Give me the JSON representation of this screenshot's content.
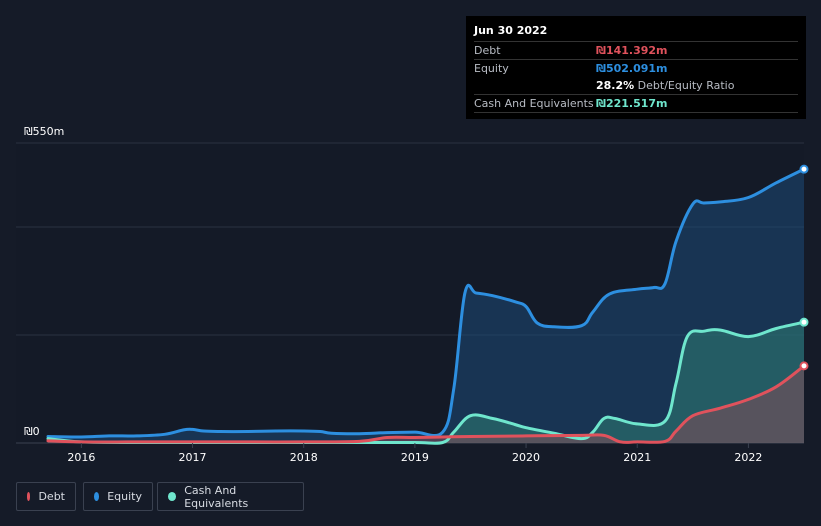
{
  "chart_data": {
    "type": "area",
    "title": "",
    "xlabel": "",
    "ylabel": "",
    "y_max_label": "₪550m",
    "y_min_label": "₪0",
    "ylim": [
      0,
      550
    ],
    "xlim": [
      2015.7,
      2022.5
    ],
    "x_ticks": [
      {
        "label": "2016",
        "value": 2016
      },
      {
        "label": "2017",
        "value": 2017
      },
      {
        "label": "2018",
        "value": 2018
      },
      {
        "label": "2019",
        "value": 2019
      },
      {
        "label": "2020",
        "value": 2020
      },
      {
        "label": "2021",
        "value": 2021
      },
      {
        "label": "2022",
        "value": 2022
      }
    ],
    "series": [
      {
        "name": "Equity",
        "key": "equity",
        "color": "#2d8fe0",
        "points": [
          [
            2015.7,
            12
          ],
          [
            2016.0,
            11
          ],
          [
            2016.25,
            13
          ],
          [
            2016.5,
            13
          ],
          [
            2016.75,
            16
          ],
          [
            2016.92,
            24
          ],
          [
            2017.0,
            25
          ],
          [
            2017.1,
            22
          ],
          [
            2017.25,
            21
          ],
          [
            2017.5,
            21
          ],
          [
            2017.75,
            22
          ],
          [
            2018.0,
            22
          ],
          [
            2018.15,
            21
          ],
          [
            2018.25,
            18
          ],
          [
            2018.5,
            17
          ],
          [
            2018.75,
            19
          ],
          [
            2019.0,
            20
          ],
          [
            2019.25,
            20
          ],
          [
            2019.35,
            100
          ],
          [
            2019.45,
            275
          ],
          [
            2019.55,
            275
          ],
          [
            2019.7,
            270
          ],
          [
            2019.9,
            259
          ],
          [
            2020.0,
            250
          ],
          [
            2020.1,
            220
          ],
          [
            2020.25,
            213
          ],
          [
            2020.5,
            215
          ],
          [
            2020.6,
            240
          ],
          [
            2020.75,
            273
          ],
          [
            2021.0,
            282
          ],
          [
            2021.15,
            285
          ],
          [
            2021.25,
            292
          ],
          [
            2021.35,
            370
          ],
          [
            2021.5,
            438
          ],
          [
            2021.6,
            440
          ],
          [
            2021.75,
            442
          ],
          [
            2022.0,
            450
          ],
          [
            2022.25,
            477
          ],
          [
            2022.5,
            502.091
          ]
        ]
      },
      {
        "name": "Cash And Equivalents",
        "key": "cash",
        "color": "#6fe6cd",
        "points": [
          [
            2015.7,
            8
          ],
          [
            2016.0,
            2
          ],
          [
            2016.5,
            1
          ],
          [
            2017.0,
            1
          ],
          [
            2017.5,
            1
          ],
          [
            2018.0,
            1
          ],
          [
            2018.5,
            1
          ],
          [
            2019.0,
            1
          ],
          [
            2019.25,
            1
          ],
          [
            2019.35,
            20
          ],
          [
            2019.5,
            50
          ],
          [
            2019.7,
            45
          ],
          [
            2019.9,
            34
          ],
          [
            2020.0,
            28
          ],
          [
            2020.25,
            18
          ],
          [
            2020.5,
            8
          ],
          [
            2020.6,
            20
          ],
          [
            2020.7,
            45
          ],
          [
            2020.8,
            45
          ],
          [
            2021.0,
            35
          ],
          [
            2021.25,
            40
          ],
          [
            2021.35,
            110
          ],
          [
            2021.45,
            195
          ],
          [
            2021.6,
            205
          ],
          [
            2021.75,
            207
          ],
          [
            2022.0,
            195
          ],
          [
            2022.25,
            210
          ],
          [
            2022.5,
            221.517
          ]
        ]
      },
      {
        "name": "Debt",
        "key": "debt",
        "color": "#e0525c",
        "points": [
          [
            2015.7,
            4
          ],
          [
            2016.0,
            2
          ],
          [
            2016.5,
            2
          ],
          [
            2017.0,
            2
          ],
          [
            2017.5,
            2
          ],
          [
            2018.0,
            2
          ],
          [
            2018.5,
            3
          ],
          [
            2018.75,
            10
          ],
          [
            2019.0,
            10
          ],
          [
            2019.25,
            11
          ],
          [
            2019.5,
            12
          ],
          [
            2020.0,
            13
          ],
          [
            2020.5,
            14
          ],
          [
            2020.7,
            14
          ],
          [
            2020.85,
            2
          ],
          [
            2021.0,
            2
          ],
          [
            2021.25,
            3
          ],
          [
            2021.35,
            22
          ],
          [
            2021.5,
            50
          ],
          [
            2021.75,
            64
          ],
          [
            2022.0,
            80
          ],
          [
            2022.25,
            103
          ],
          [
            2022.5,
            141.392
          ]
        ]
      }
    ]
  },
  "tooltip": {
    "date": "Jun 30 2022",
    "debt_label": "Debt",
    "debt_value": "₪141.392m",
    "equity_label": "Equity",
    "equity_value": "₪502.091m",
    "ratio_value": "28.2%",
    "ratio_label": "Debt/Equity Ratio",
    "cash_label": "Cash And Equivalents",
    "cash_value": "₪221.517m"
  },
  "legend": [
    {
      "key": "debt",
      "label": "Debt",
      "color": "#e0525c"
    },
    {
      "key": "equity",
      "label": "Equity",
      "color": "#2d8fe0"
    },
    {
      "key": "cash",
      "label": "Cash And Equivalents",
      "color": "#6fe6cd"
    }
  ]
}
